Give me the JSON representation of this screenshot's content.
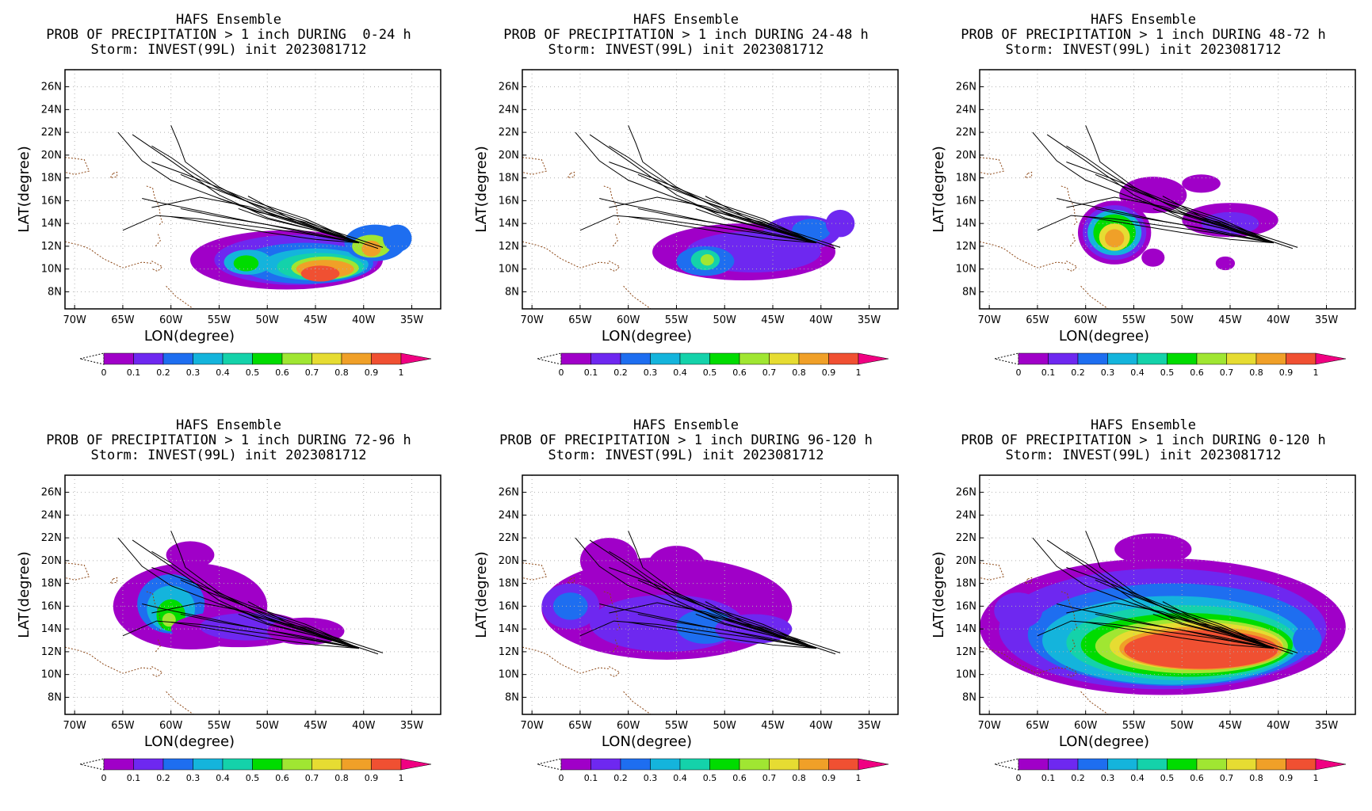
{
  "panels": [
    {
      "id": "p1",
      "line1": "HAFS Ensemble",
      "line2": "PROB OF PRECIPITATION > 1 inch DURING  0-24 h",
      "line3": "Storm: INVEST(99L) init 2023081712"
    },
    {
      "id": "p2",
      "line1": "HAFS Ensemble",
      "line2": "PROB OF PRECIPITATION > 1 inch DURING 24-48 h",
      "line3": "Storm: INVEST(99L) init 2023081712"
    },
    {
      "id": "p3",
      "line1": "HAFS Ensemble",
      "line2": "PROB OF PRECIPITATION > 1 inch DURING 48-72 h",
      "line3": "Storm: INVEST(99L) init 2023081712"
    },
    {
      "id": "p4",
      "line1": "HAFS Ensemble",
      "line2": "PROB OF PRECIPITATION > 1 inch DURING 72-96 h",
      "line3": "Storm: INVEST(99L) init 2023081712"
    },
    {
      "id": "p5",
      "line1": "HAFS Ensemble",
      "line2": "PROB OF PRECIPITATION > 1 inch DURING 96-120 h",
      "line3": "Storm: INVEST(99L) init 2023081712"
    },
    {
      "id": "p6",
      "line1": "HAFS Ensemble",
      "line2": "PROB OF PRECIPITATION > 1 inch DURING 0-120 h",
      "line3": "Storm: INVEST(99L) init 2023081712"
    }
  ],
  "axes": {
    "xlabel": "LON(degree)",
    "ylabel": "LAT(degree)",
    "xticks": [
      "70W",
      "65W",
      "60W",
      "55W",
      "50W",
      "45W",
      "40W",
      "35W"
    ],
    "xvalues": [
      -70,
      -65,
      -60,
      -55,
      -50,
      -45,
      -40,
      -35
    ],
    "yticks": [
      "8N",
      "10N",
      "12N",
      "14N",
      "16N",
      "18N",
      "20N",
      "22N",
      "24N",
      "26N"
    ],
    "yvalues": [
      8,
      10,
      12,
      14,
      16,
      18,
      20,
      22,
      24,
      26
    ],
    "xlim": [
      -71,
      -32
    ],
    "ylim": [
      6.5,
      27.5
    ]
  },
  "colorbar": {
    "labels": [
      "0",
      "0.1",
      "0.2",
      "0.3",
      "0.4",
      "0.5",
      "0.6",
      "0.7",
      "0.8",
      "0.9",
      "1"
    ],
    "colors": [
      "#a000c8",
      "#6e28f0",
      "#1e6ef0",
      "#14b4dc",
      "#14d2aa",
      "#00dc00",
      "#a0e632",
      "#e6dc32",
      "#f0a028",
      "#f05032"
    ],
    "over_color": "#f00082"
  },
  "tracks": [
    [
      [
        -40.5,
        12.3
      ],
      [
        -45,
        13.5
      ],
      [
        -50,
        14.8
      ],
      [
        -55,
        16.2
      ],
      [
        -60,
        17.8
      ],
      [
        -63,
        19.5
      ],
      [
        -65.5,
        22
      ]
    ],
    [
      [
        -40.5,
        12.3
      ],
      [
        -45,
        13.4
      ],
      [
        -50,
        14.5
      ],
      [
        -55,
        16.5
      ],
      [
        -60,
        19.5
      ],
      [
        -64,
        21.8
      ]
    ],
    [
      [
        -40.5,
        12.3
      ],
      [
        -45,
        13.7
      ],
      [
        -50,
        15.2
      ],
      [
        -55,
        17.0
      ],
      [
        -58,
        18.6
      ],
      [
        -60,
        19.8
      ],
      [
        -62,
        20.8
      ]
    ],
    [
      [
        -40.5,
        12.3
      ],
      [
        -45,
        13.6
      ],
      [
        -50,
        15.0
      ],
      [
        -55,
        17.2
      ],
      [
        -58.5,
        19.4
      ],
      [
        -59.2,
        21
      ],
      [
        -60,
        22.6
      ]
    ],
    [
      [
        -40.5,
        12.3
      ],
      [
        -46,
        14.2
      ],
      [
        -52,
        15.9
      ],
      [
        -56,
        17.2
      ],
      [
        -59,
        18.3
      ]
    ],
    [
      [
        -40.5,
        12.3
      ],
      [
        -46,
        13.3
      ],
      [
        -52,
        14.2
      ],
      [
        -57,
        15.1
      ],
      [
        -61,
        15.8
      ],
      [
        -63,
        16.2
      ]
    ],
    [
      [
        -40.5,
        12.3
      ],
      [
        -46,
        13.1
      ],
      [
        -52,
        13.8
      ],
      [
        -57,
        14.4
      ],
      [
        -61.5,
        14.7
      ],
      [
        -65,
        13.4
      ]
    ],
    [
      [
        -40.5,
        12.3
      ],
      [
        -46,
        13.8
      ],
      [
        -52,
        15.5
      ],
      [
        -57,
        16.3
      ],
      [
        -62,
        15.4
      ]
    ],
    [
      [
        -40.5,
        12.3
      ],
      [
        -46,
        14.4
      ],
      [
        -52,
        16.1
      ],
      [
        -57.5,
        18.0
      ],
      [
        -62,
        19.4
      ]
    ],
    [
      [
        -40.5,
        12.3
      ],
      [
        -45,
        13.0
      ],
      [
        -50,
        13.9
      ],
      [
        -55,
        14.6
      ],
      [
        -59,
        15.3
      ]
    ],
    [
      [
        -38.5,
        11.8
      ],
      [
        -42,
        12.8
      ],
      [
        -46,
        13.6
      ],
      [
        -50,
        14.4
      ],
      [
        -53,
        15.3
      ]
    ],
    [
      [
        -38,
        11.9
      ],
      [
        -42,
        13.0
      ],
      [
        -46,
        14.1
      ],
      [
        -51,
        15.0
      ],
      [
        -55,
        16.2
      ]
    ],
    [
      [
        -40.5,
        12.3
      ],
      [
        -44,
        13.3
      ],
      [
        -48,
        14.6
      ],
      [
        -52,
        16.4
      ]
    ],
    [
      [
        -40.5,
        12.3
      ],
      [
        -45,
        12.6
      ],
      [
        -50,
        13.2
      ],
      [
        -55,
        13.9
      ],
      [
        -60,
        14.6
      ]
    ]
  ]
}
